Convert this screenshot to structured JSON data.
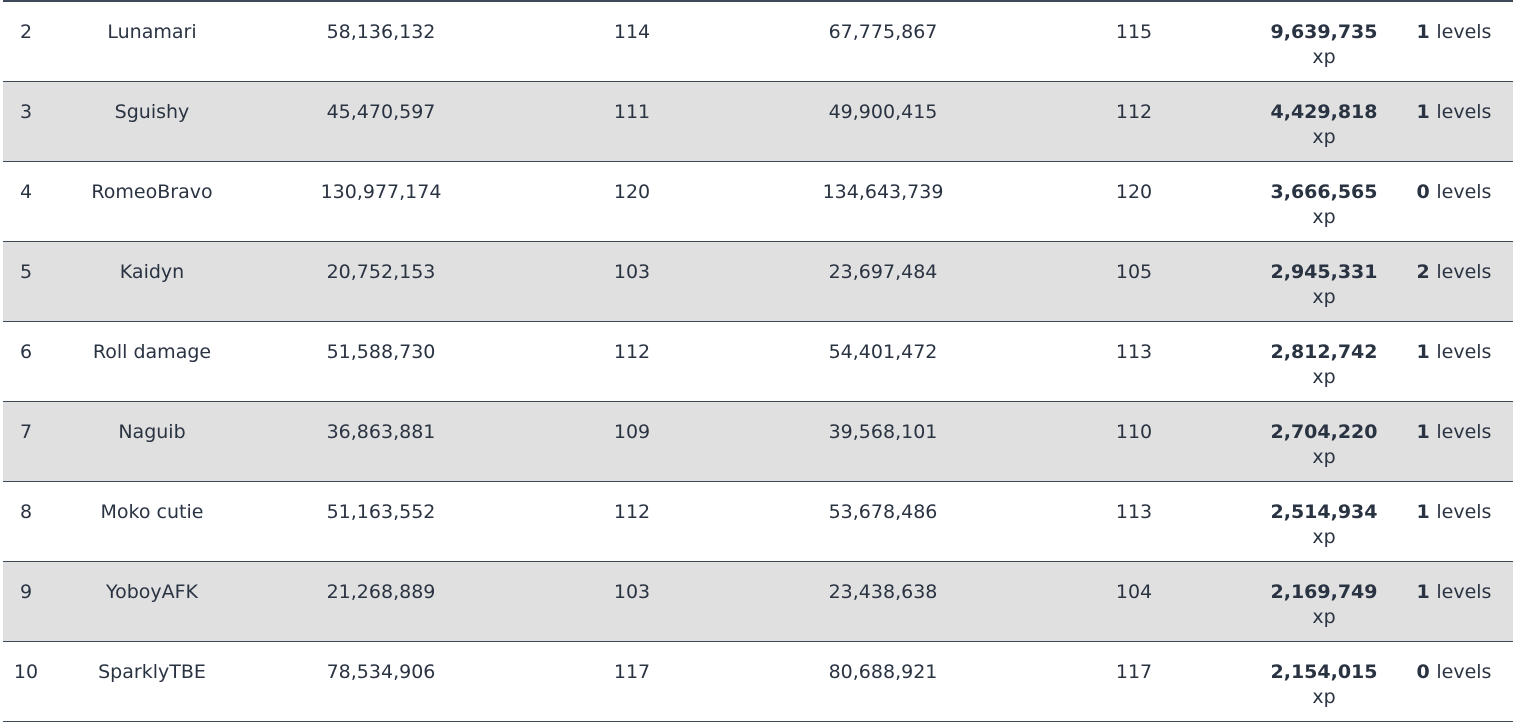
{
  "table": {
    "unit_xp": "xp",
    "unit_levels": "levels",
    "rows": [
      {
        "rank": "2",
        "name": "Lunamari",
        "start_xp": "58,136,132",
        "start_level": "114",
        "end_xp": "67,775,867",
        "end_level": "115",
        "gained_xp": "9,639,735",
        "levels_gained": "1"
      },
      {
        "rank": "3",
        "name": "Sguishy",
        "start_xp": "45,470,597",
        "start_level": "111",
        "end_xp": "49,900,415",
        "end_level": "112",
        "gained_xp": "4,429,818",
        "levels_gained": "1"
      },
      {
        "rank": "4",
        "name": "RomeoBravo",
        "start_xp": "130,977,174",
        "start_level": "120",
        "end_xp": "134,643,739",
        "end_level": "120",
        "gained_xp": "3,666,565",
        "levels_gained": "0"
      },
      {
        "rank": "5",
        "name": "Kaidyn",
        "start_xp": "20,752,153",
        "start_level": "103",
        "end_xp": "23,697,484",
        "end_level": "105",
        "gained_xp": "2,945,331",
        "levels_gained": "2"
      },
      {
        "rank": "6",
        "name": "Roll damage",
        "start_xp": "51,588,730",
        "start_level": "112",
        "end_xp": "54,401,472",
        "end_level": "113",
        "gained_xp": "2,812,742",
        "levels_gained": "1"
      },
      {
        "rank": "7",
        "name": "Naguib",
        "start_xp": "36,863,881",
        "start_level": "109",
        "end_xp": "39,568,101",
        "end_level": "110",
        "gained_xp": "2,704,220",
        "levels_gained": "1"
      },
      {
        "rank": "8",
        "name": "Moko cutie",
        "start_xp": "51,163,552",
        "start_level": "112",
        "end_xp": "53,678,486",
        "end_level": "113",
        "gained_xp": "2,514,934",
        "levels_gained": "1"
      },
      {
        "rank": "9",
        "name": "YoboyAFK",
        "start_xp": "21,268,889",
        "start_level": "103",
        "end_xp": "23,438,638",
        "end_level": "104",
        "gained_xp": "2,169,749",
        "levels_gained": "1"
      },
      {
        "rank": "10",
        "name": "SparklyTBE",
        "start_xp": "78,534,906",
        "start_level": "117",
        "end_xp": "80,688,921",
        "end_level": "117",
        "gained_xp": "2,154,015",
        "levels_gained": "0"
      }
    ]
  },
  "colors": {
    "border": "#3d4a5c",
    "alt_row": "#e0e0e0",
    "text": "#2a3342"
  }
}
